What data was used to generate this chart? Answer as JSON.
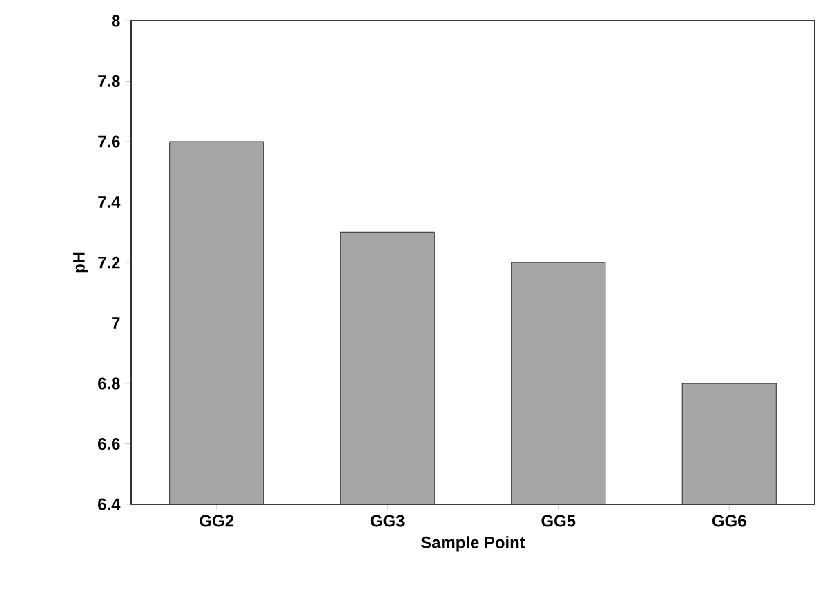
{
  "chart_data": {
    "type": "bar",
    "xlabel": "Sample Point",
    "ylabel": "pH",
    "categories": [
      "GG2",
      "GG3",
      "GG5",
      "GG6"
    ],
    "values": [
      7.6,
      7.3,
      7.2,
      6.8
    ],
    "color": "#a6a6a6",
    "ylim": [
      6.4,
      8
    ],
    "yticks": [
      6.4,
      6.6,
      6.8,
      7,
      7.2,
      7.4,
      7.6,
      7.8,
      8
    ],
    "grid": false
  }
}
